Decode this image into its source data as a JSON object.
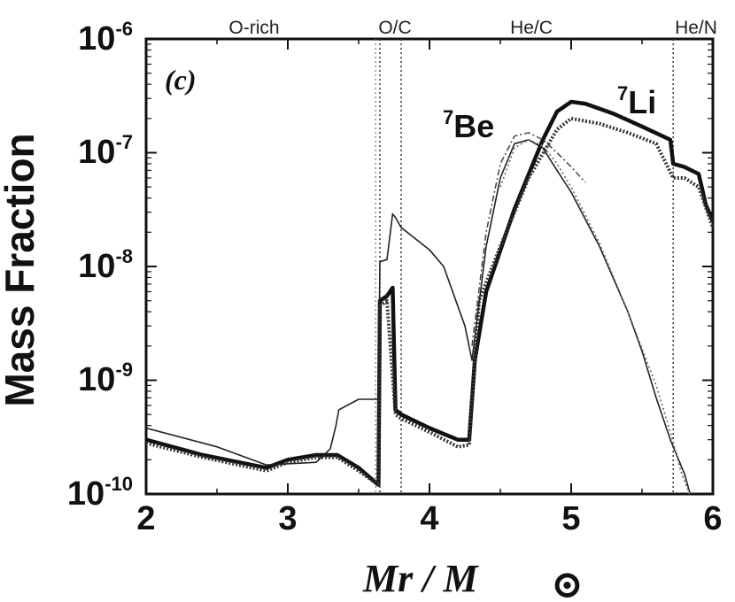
{
  "chart_data": {
    "type": "line",
    "panel_label": "(c)",
    "xlabel": "Mr / M",
    "xlabel_symbol": "⊙",
    "ylabel": "Mass Fraction",
    "xlim": [
      2,
      6
    ],
    "ylim": [
      1e-10,
      1e-06
    ],
    "yscale": "log",
    "x_ticks": [
      "2",
      "3",
      "4",
      "5",
      "6"
    ],
    "y_ticks": [
      {
        "base": "10",
        "exp": "-6"
      },
      {
        "base": "10",
        "exp": "-7"
      },
      {
        "base": "10",
        "exp": "-8"
      },
      {
        "base": "10",
        "exp": "-9"
      },
      {
        "base": "10",
        "exp": "-10"
      }
    ],
    "regions": [
      {
        "label": "O-rich"
      },
      {
        "label": "O/C",
        "boundary": 3.65
      },
      {
        "label": "He/C",
        "boundary": 3.8
      },
      {
        "label": "He/N",
        "boundary": 5.72
      }
    ],
    "series_labels": [
      {
        "mass": "7",
        "element": "Be"
      },
      {
        "mass": "7",
        "element": "Li"
      }
    ],
    "series": [
      {
        "species": "7Li",
        "style": "thick-solid",
        "x": [
          2.0,
          2.4,
          2.85,
          3.0,
          3.2,
          3.35,
          3.5,
          3.64,
          3.65,
          3.7,
          3.74,
          3.76,
          3.8,
          4.0,
          4.2,
          4.28,
          4.32,
          4.4,
          4.6,
          4.8,
          4.9,
          5.0,
          5.1,
          5.3,
          5.5,
          5.7,
          5.72,
          5.8,
          5.9,
          5.95,
          6.0
        ],
        "y": [
          3e-10,
          2.2e-10,
          1.7e-10,
          2e-10,
          2.2e-10,
          2.2e-10,
          1.7e-10,
          1.2e-10,
          5e-09,
          5.5e-09,
          6.5e-09,
          5.5e-10,
          5e-10,
          3.8e-10,
          3e-10,
          3e-10,
          1.5e-09,
          6e-09,
          3.2e-08,
          1.3e-07,
          2.3e-07,
          2.8e-07,
          2.7e-07,
          2.2e-07,
          1.7e-07,
          1.3e-07,
          8e-08,
          7.5e-08,
          6.5e-08,
          3.5e-08,
          2.5e-08
        ]
      },
      {
        "species": "7Li",
        "style": "thick-dotted",
        "x": [
          2.0,
          2.4,
          2.85,
          3.0,
          3.2,
          3.35,
          3.5,
          3.64,
          3.65,
          3.7,
          3.76,
          3.8,
          4.0,
          4.2,
          4.28,
          4.35,
          4.5,
          4.7,
          4.9,
          5.0,
          5.2,
          5.4,
          5.6,
          5.72,
          5.8,
          5.9,
          6.0
        ],
        "y": [
          2.8e-10,
          2.1e-10,
          1.6e-10,
          1.9e-10,
          2.1e-10,
          2.1e-10,
          1.6e-10,
          1.2e-10,
          4.5e-09,
          5e-09,
          5e-10,
          4.6e-10,
          3.5e-10,
          2.6e-10,
          2.7e-10,
          5e-09,
          1.5e-08,
          6e-08,
          1.6e-07,
          2e-07,
          1.8e-07,
          1.5e-07,
          1.2e-07,
          6e-08,
          6e-08,
          5e-08,
          2.2e-08
        ]
      },
      {
        "species": "7Be",
        "style": "thin-solid",
        "x": [
          2.0,
          2.5,
          2.85,
          3.2,
          3.3,
          3.34,
          3.36,
          3.5,
          3.64,
          3.65,
          3.7,
          3.74,
          3.76,
          3.8,
          4.0,
          4.1,
          4.25,
          4.3,
          4.4,
          4.5,
          4.6,
          4.7,
          4.8,
          4.9,
          5.0,
          5.2,
          5.4,
          5.5,
          5.6,
          5.7,
          5.8,
          5.85
        ],
        "y": [
          3.8e-10,
          2.6e-10,
          1.8e-10,
          1.9e-10,
          2.5e-10,
          4e-10,
          5.5e-10,
          6.8e-10,
          6.8e-10,
          1.1e-08,
          1.15e-08,
          2.9e-08,
          2.7e-08,
          2.2e-08,
          1.4e-08,
          1e-08,
          3e-09,
          1.5e-09,
          1.5e-08,
          6e-08,
          1.2e-07,
          1.3e-07,
          1.1e-07,
          7e-08,
          4.5e-08,
          1.5e-08,
          4e-09,
          1.8e-09,
          7e-10,
          3e-10,
          1.5e-10,
          9e-11
        ]
      },
      {
        "species": "7Be",
        "style": "dash-dot",
        "x": [
          4.3,
          4.4,
          4.5,
          4.6,
          4.7,
          4.8,
          4.9,
          5.0,
          5.1
        ],
        "y": [
          2e-09,
          2e-08,
          8e-08,
          1.4e-07,
          1.5e-07,
          1.3e-07,
          1e-07,
          7.5e-08,
          5.5e-08
        ]
      },
      {
        "species": "7Be",
        "style": "dotted",
        "x": [
          4.5,
          4.6,
          4.7,
          4.8,
          4.9,
          5.0,
          5.2,
          5.4,
          5.6,
          5.7,
          5.78,
          5.85
        ],
        "y": [
          5e-08,
          1.1e-07,
          1.3e-07,
          1.15e-07,
          8e-08,
          5e-08,
          1.6e-08,
          4e-09,
          9e-10,
          3.5e-10,
          1.5e-10,
          9e-11
        ]
      }
    ]
  }
}
